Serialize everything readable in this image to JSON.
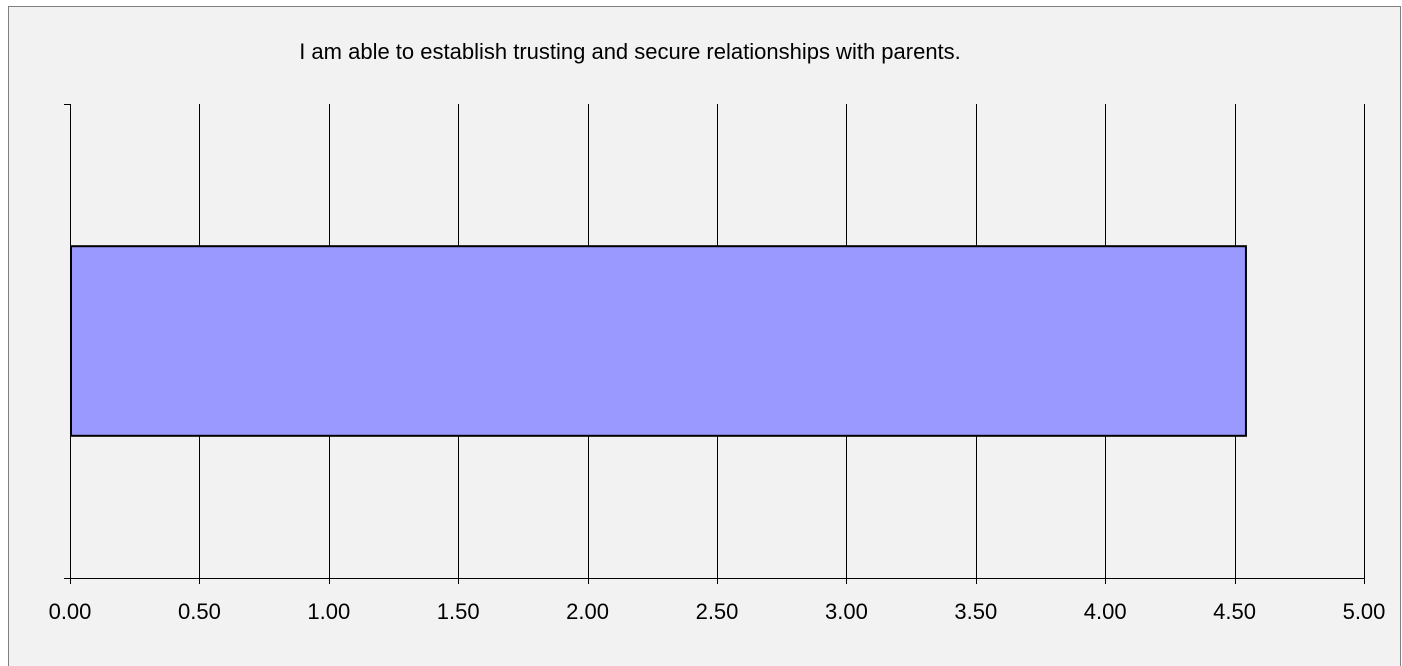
{
  "chart_data": {
    "type": "bar",
    "orientation": "horizontal",
    "title": "I am able to establish trusting and secure relationships with parents.",
    "categories": [
      ""
    ],
    "values": [
      4.54
    ],
    "xlim": [
      0,
      5
    ],
    "xticks": [
      "0.00",
      "0.50",
      "1.00",
      "1.50",
      "2.00",
      "2.50",
      "3.00",
      "3.50",
      "4.00",
      "4.50",
      "5.00"
    ],
    "xlabel": "",
    "ylabel": "",
    "grid": "vertical",
    "legend": "none",
    "bar_color": "#9999ff",
    "bar_border_color": "#000000",
    "background_color": "#f2f2f2"
  }
}
